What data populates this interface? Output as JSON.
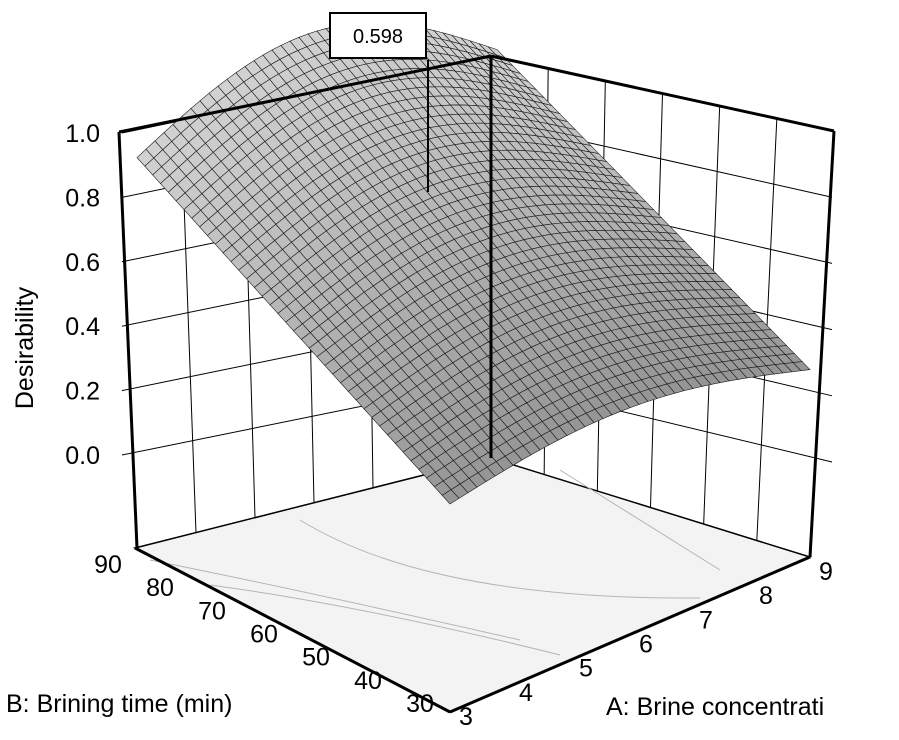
{
  "chart_data": {
    "type": "surface",
    "title": "",
    "zlabel": "Desirability",
    "xlabel": "A: Brine concentrati",
    "ylabel": "B: Brining time (min)",
    "z_ticks": [
      "0.0",
      "0.2",
      "0.4",
      "0.6",
      "0.8",
      "1.0"
    ],
    "x_ticks": [
      "3",
      "4",
      "5",
      "6",
      "7",
      "8",
      "9"
    ],
    "y_ticks": [
      "30",
      "40",
      "50",
      "60",
      "70",
      "80",
      "90"
    ],
    "xlim": [
      3,
      9
    ],
    "ylim": [
      30,
      90
    ],
    "zlim": [
      0,
      1
    ],
    "annotation": "0.598",
    "grid": true,
    "surface_points": [
      {
        "A": 3,
        "B": 90,
        "desirability": 0.38
      },
      {
        "A": 3,
        "B": 30,
        "desirability": 0.1
      },
      {
        "A": 9,
        "B": 30,
        "desirability": 0.28
      },
      {
        "A": 9,
        "B": 90,
        "desirability": 0.48
      },
      {
        "A": 6,
        "B": 90,
        "desirability": 0.6
      },
      {
        "A": 6,
        "B": 30,
        "desirability": 0.25
      },
      {
        "A": 6,
        "B": 60,
        "desirability": 0.45
      },
      {
        "A": 3,
        "B": 60,
        "desirability": 0.3
      },
      {
        "A": 9,
        "B": 60,
        "desirability": 0.38
      }
    ]
  }
}
